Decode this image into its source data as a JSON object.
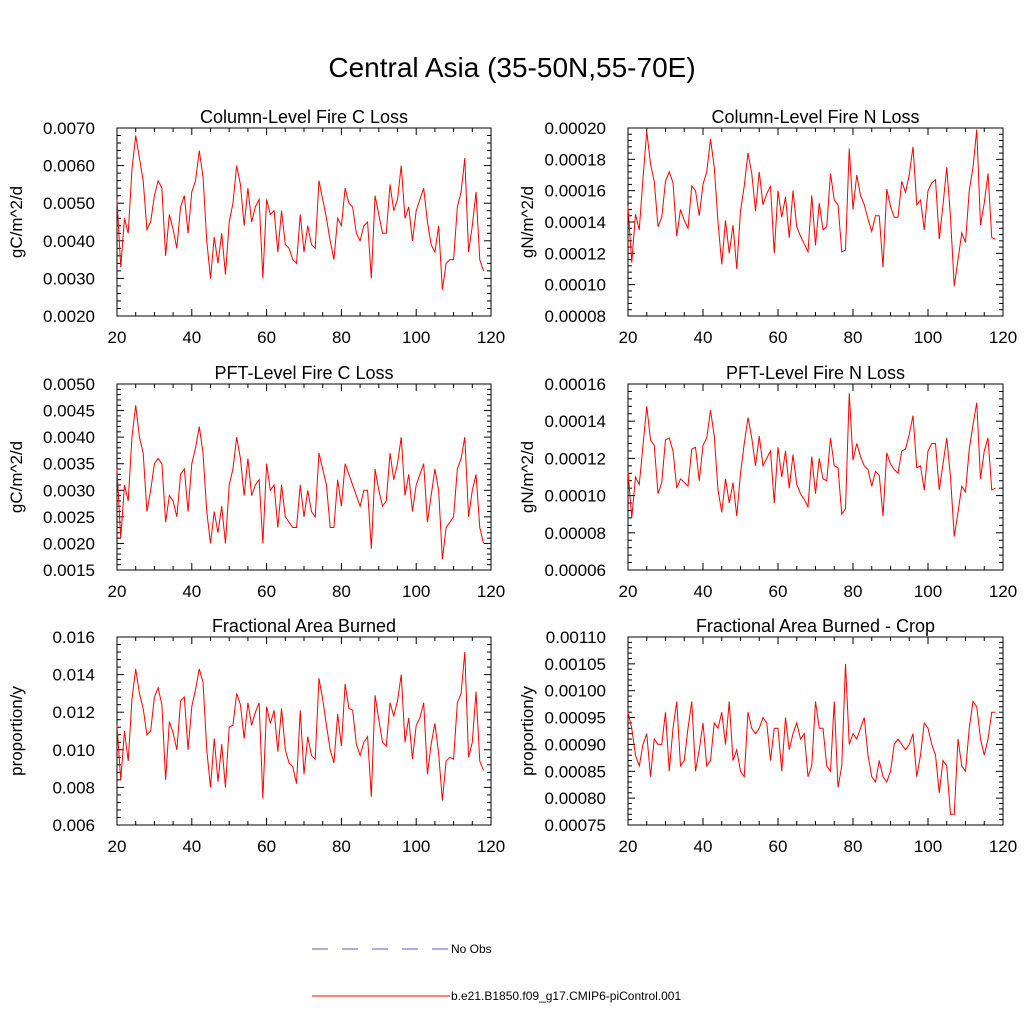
{
  "title": "Central Asia (35-50N,55-70E)",
  "legend": {
    "entries": [
      {
        "label": "No Obs",
        "color": "#5b5bc8",
        "dash": true
      },
      {
        "label": "b.e21.B1850.f09_g17.CMIP6-piControl.001",
        "color": "#ff0000",
        "dash": false
      }
    ]
  },
  "chart_data": [
    {
      "type": "line",
      "title": "Column-Level Fire C Loss",
      "ylabel": "gC/m^2/d",
      "xlim": [
        20,
        120
      ],
      "xticks": [
        20,
        40,
        60,
        80,
        100,
        120
      ],
      "ylim": [
        0.002,
        0.007
      ],
      "yticks": [
        "0.0020",
        "0.0030",
        "0.0040",
        "0.0050",
        "0.0060",
        "0.0070"
      ],
      "x_start": 20,
      "series": [
        {
          "name": "b.e21.B1850.f09_g17.CMIP6-piControl.001",
          "color": "#ff0000",
          "values": [
            0.0051,
            0.0033,
            0.0046,
            0.0042,
            0.0059,
            0.0068,
            0.0062,
            0.0056,
            0.0043,
            0.0045,
            0.0052,
            0.0056,
            0.0054,
            0.0036,
            0.0047,
            0.0043,
            0.0038,
            0.0049,
            0.0052,
            0.0042,
            0.0053,
            0.0056,
            0.0064,
            0.0057,
            0.004,
            0.003,
            0.0041,
            0.0034,
            0.0042,
            0.0031,
            0.0045,
            0.005,
            0.006,
            0.0055,
            0.0044,
            0.0054,
            0.0045,
            0.0049,
            0.0051,
            0.003,
            0.0051,
            0.0047,
            0.0048,
            0.0037,
            0.0048,
            0.0039,
            0.0038,
            0.0035,
            0.0034,
            0.0047,
            0.0037,
            0.0044,
            0.0039,
            0.0038,
            0.0056,
            0.0051,
            0.0046,
            0.004,
            0.0035,
            0.0046,
            0.0044,
            0.0054,
            0.005,
            0.0049,
            0.0042,
            0.004,
            0.0044,
            0.0045,
            0.003,
            0.0052,
            0.0047,
            0.0042,
            0.0042,
            0.0055,
            0.0048,
            0.0051,
            0.006,
            0.0046,
            0.0049,
            0.004,
            0.0048,
            0.0051,
            0.0054,
            0.0045,
            0.0039,
            0.0037,
            0.0044,
            0.0027,
            0.0034,
            0.0035,
            0.0035,
            0.0049,
            0.0053,
            0.0062,
            0.0037,
            0.0044,
            0.0053,
            0.0035,
            0.0032
          ]
        }
      ]
    },
    {
      "type": "line",
      "title": "Column-Level Fire N Loss",
      "ylabel": "gN/m^2/d",
      "xlim": [
        20,
        120
      ],
      "xticks": [
        20,
        40,
        60,
        80,
        100,
        120
      ],
      "ylim": [
        8e-05,
        0.0002
      ],
      "yticks": [
        "0.00008",
        "0.00010",
        "0.00012",
        "0.00014",
        "0.00016",
        "0.00018",
        "0.00020"
      ],
      "x_start": 20,
      "series": [
        {
          "name": "b.e21.B1850.f09_g17.CMIP6-piControl.001",
          "color": "#ff0000",
          "values": [
            0.00015,
            0.000114,
            0.000145,
            0.000135,
            0.000168,
            0.000198,
            0.000177,
            0.000166,
            0.000137,
            0.000143,
            0.000166,
            0.000172,
            0.000165,
            0.000131,
            0.000148,
            0.000141,
            0.000136,
            0.000163,
            0.00016,
            0.000144,
            0.000164,
            0.000172,
            0.000193,
            0.000175,
            0.00014,
            0.000113,
            0.000141,
            0.00012,
            0.000138,
            0.00011,
            0.000147,
            0.000163,
            0.000184,
            0.000171,
            0.000147,
            0.000172,
            0.000151,
            0.000158,
            0.000163,
            0.00012,
            0.00016,
            0.000143,
            0.000156,
            0.00013,
            0.00016,
            0.000137,
            0.000131,
            0.000126,
            0.000121,
            0.000157,
            0.000125,
            0.000152,
            0.000135,
            0.000137,
            0.000171,
            0.000154,
            0.000151,
            0.000121,
            0.000122,
            0.000187,
            0.000148,
            0.00017,
            0.000157,
            0.000151,
            0.000142,
            0.000134,
            0.000144,
            0.000144,
            0.000111,
            0.000161,
            0.00015,
            0.000143,
            0.000143,
            0.000166,
            0.000159,
            0.00017,
            0.000188,
            0.000151,
            0.000154,
            0.000135,
            0.00016,
            0.000165,
            0.000167,
            0.000129,
            0.000151,
            0.000175,
            0.000143,
            9.9e-05,
            0.000116,
            0.000133,
            0.000127,
            0.00016,
            0.000175,
            0.000199,
            0.000138,
            0.000152,
            0.000171,
            0.00013,
            0.000129
          ]
        }
      ]
    },
    {
      "type": "line",
      "title": "PFT-Level Fire C Loss",
      "ylabel": "gC/m^2/d",
      "xlim": [
        20,
        120
      ],
      "xticks": [
        20,
        40,
        60,
        80,
        100,
        120
      ],
      "ylim": [
        0.0015,
        0.005
      ],
      "yticks": [
        "0.0015",
        "0.0020",
        "0.0025",
        "0.0030",
        "0.0035",
        "0.0040",
        "0.0045",
        "0.0050"
      ],
      "x_start": 20,
      "series": [
        {
          "name": "b.e21.B1850.f09_g17.CMIP6-piControl.001",
          "color": "#ff0000",
          "values": [
            0.0034,
            0.0021,
            0.0031,
            0.0028,
            0.004,
            0.0046,
            0.004,
            0.0037,
            0.0026,
            0.003,
            0.0035,
            0.0036,
            0.0035,
            0.0024,
            0.0029,
            0.0028,
            0.0025,
            0.0033,
            0.0034,
            0.0026,
            0.0035,
            0.0038,
            0.0042,
            0.0037,
            0.0026,
            0.002,
            0.0026,
            0.0022,
            0.0027,
            0.002,
            0.0031,
            0.0034,
            0.004,
            0.0036,
            0.0029,
            0.0036,
            0.0029,
            0.0031,
            0.0032,
            0.002,
            0.0035,
            0.003,
            0.0031,
            0.0023,
            0.0031,
            0.0025,
            0.0024,
            0.0023,
            0.0023,
            0.0031,
            0.0025,
            0.003,
            0.0026,
            0.0025,
            0.0037,
            0.0034,
            0.0031,
            0.0023,
            0.0023,
            0.0032,
            0.0027,
            0.0035,
            0.0033,
            0.0031,
            0.0029,
            0.0027,
            0.003,
            0.003,
            0.0019,
            0.0034,
            0.003,
            0.0027,
            0.0028,
            0.0037,
            0.0032,
            0.0035,
            0.004,
            0.0029,
            0.0033,
            0.0026,
            0.0031,
            0.0033,
            0.0035,
            0.0024,
            0.0029,
            0.0034,
            0.003,
            0.0017,
            0.0023,
            0.0024,
            0.0025,
            0.0034,
            0.0036,
            0.004,
            0.0025,
            0.003,
            0.0033,
            0.0023,
            0.002
          ]
        }
      ]
    },
    {
      "type": "line",
      "title": "PFT-Level Fire N Loss",
      "ylabel": "gN/m^2/d",
      "xlim": [
        20,
        120
      ],
      "xticks": [
        20,
        40,
        60,
        80,
        100,
        120
      ],
      "ylim": [
        6e-05,
        0.00016
      ],
      "yticks": [
        "0.00006",
        "0.00008",
        "0.00010",
        "0.00012",
        "0.00014",
        "0.00016"
      ],
      "x_start": 20,
      "series": [
        {
          "name": "b.e21.B1850.f09_g17.CMIP6-piControl.001",
          "color": "#ff0000",
          "values": [
            0.000113,
            8.8e-05,
            0.00011,
            0.000106,
            0.000127,
            0.000148,
            0.00013,
            0.000127,
            0.000101,
            0.000107,
            0.00013,
            0.000131,
            0.000124,
            0.000104,
            0.000109,
            0.000107,
            0.000105,
            0.000125,
            0.000126,
            0.000108,
            0.000127,
            0.000131,
            0.000146,
            0.000132,
            0.000103,
            9.1e-05,
            0.000109,
            9.6e-05,
            0.000107,
            8.9e-05,
            0.000112,
            0.000128,
            0.000142,
            0.000131,
            0.000116,
            0.000132,
            0.000116,
            0.00012,
            0.000124,
            9.6e-05,
            0.000126,
            0.00011,
            0.000124,
            0.000104,
            0.000122,
            0.000106,
            0.000101,
            9.8e-05,
            9.4e-05,
            0.000121,
            0.000101,
            0.00012,
            0.000109,
            0.000108,
            0.000131,
            0.000116,
            0.000115,
            9e-05,
            9.3e-05,
            0.000155,
            0.000119,
            0.000128,
            0.000121,
            0.000116,
            0.000114,
            0.000105,
            0.000113,
            0.000111,
            8.9e-05,
            0.000123,
            0.000117,
            0.000114,
            0.000112,
            0.000124,
            0.000125,
            0.000133,
            0.000143,
            0.000115,
            0.000116,
            0.000103,
            0.000124,
            0.000128,
            0.000128,
            0.000103,
            0.000117,
            0.000131,
            0.00011,
            7.8e-05,
            9.1e-05,
            0.000105,
            0.000102,
            0.000125,
            0.000138,
            0.00015,
            0.000109,
            0.000124,
            0.000131,
            0.000103,
            0.000104
          ]
        }
      ]
    },
    {
      "type": "line",
      "title": "Fractional Area Burned",
      "ylabel": "proportion/y",
      "xlim": [
        20,
        120
      ],
      "xticks": [
        20,
        40,
        60,
        80,
        100,
        120
      ],
      "ylim": [
        0.006,
        0.016
      ],
      "yticks": [
        "0.006",
        "0.008",
        "0.010",
        "0.012",
        "0.014",
        "0.016"
      ],
      "x_start": 20,
      "series": [
        {
          "name": "b.e21.B1850.f09_g17.CMIP6-piControl.001",
          "color": "#ff0000",
          "values": [
            0.0113,
            0.0084,
            0.011,
            0.0094,
            0.0127,
            0.0143,
            0.013,
            0.0122,
            0.0108,
            0.011,
            0.0128,
            0.0133,
            0.0124,
            0.0084,
            0.0115,
            0.0109,
            0.01,
            0.0126,
            0.0128,
            0.01,
            0.0123,
            0.0132,
            0.0143,
            0.0136,
            0.01,
            0.008,
            0.0106,
            0.0083,
            0.0103,
            0.008,
            0.0112,
            0.0113,
            0.013,
            0.0124,
            0.0106,
            0.0125,
            0.0113,
            0.012,
            0.0125,
            0.0074,
            0.0123,
            0.0114,
            0.0121,
            0.0099,
            0.0122,
            0.01,
            0.0093,
            0.0091,
            0.0082,
            0.0121,
            0.0087,
            0.0107,
            0.0097,
            0.0095,
            0.0138,
            0.0127,
            0.0113,
            0.01,
            0.0093,
            0.0119,
            0.0102,
            0.0135,
            0.0122,
            0.0121,
            0.0103,
            0.0097,
            0.0104,
            0.0107,
            0.0075,
            0.0129,
            0.0116,
            0.0104,
            0.0102,
            0.0125,
            0.0118,
            0.0126,
            0.014,
            0.0104,
            0.0117,
            0.0095,
            0.0113,
            0.0117,
            0.0125,
            0.0087,
            0.0103,
            0.0114,
            0.0098,
            0.0073,
            0.0094,
            0.0096,
            0.0095,
            0.0125,
            0.013,
            0.0152,
            0.0096,
            0.0104,
            0.0131,
            0.0094,
            0.0089
          ]
        }
      ]
    },
    {
      "type": "line",
      "title": "Fractional Area Burned - Crop",
      "ylabel": "proportion/y",
      "xlim": [
        20,
        120
      ],
      "xticks": [
        20,
        40,
        60,
        80,
        100,
        120
      ],
      "ylim": [
        0.00075,
        0.0011
      ],
      "yticks": [
        "0.00075",
        "0.00080",
        "0.00085",
        "0.00090",
        "0.00095",
        "0.00100",
        "0.00105",
        "0.00110"
      ],
      "x_start": 20,
      "series": [
        {
          "name": "b.e21.B1850.f09_g17.CMIP6-piControl.001",
          "color": "#ff0000",
          "values": [
            0.00096,
            0.00093,
            0.00088,
            0.00086,
            0.0009,
            0.00092,
            0.00084,
            0.00091,
            0.0009,
            0.0009,
            0.00096,
            0.00085,
            0.00093,
            0.00098,
            0.00086,
            0.00087,
            0.00093,
            0.00098,
            0.00085,
            0.00089,
            0.00094,
            0.00086,
            0.00087,
            0.00094,
            0.00093,
            0.00096,
            0.0009,
            0.00098,
            0.00087,
            0.00089,
            0.00085,
            0.00084,
            0.00096,
            0.00093,
            0.00092,
            0.00093,
            0.00095,
            0.00094,
            0.00087,
            0.00093,
            0.00093,
            0.00085,
            0.00095,
            0.00089,
            0.00092,
            0.00094,
            0.00091,
            0.00092,
            0.00084,
            0.00086,
            0.00098,
            0.00093,
            0.00093,
            0.00086,
            0.00085,
            0.00098,
            0.00082,
            0.00086,
            0.00105,
            0.0009,
            0.00092,
            0.00091,
            0.00093,
            0.00095,
            0.00088,
            0.00084,
            0.00083,
            0.00087,
            0.00084,
            0.00083,
            0.00085,
            0.0009,
            0.00091,
            0.0009,
            0.00089,
            0.0009,
            0.00092,
            0.00084,
            0.00088,
            0.00094,
            0.00093,
            0.0009,
            0.00088,
            0.00081,
            0.00087,
            0.00086,
            0.00077,
            0.00077,
            0.00091,
            0.00086,
            0.00085,
            0.00093,
            0.00098,
            0.00097,
            0.00091,
            0.00088,
            0.00091,
            0.00096,
            0.00096
          ]
        }
      ]
    }
  ]
}
